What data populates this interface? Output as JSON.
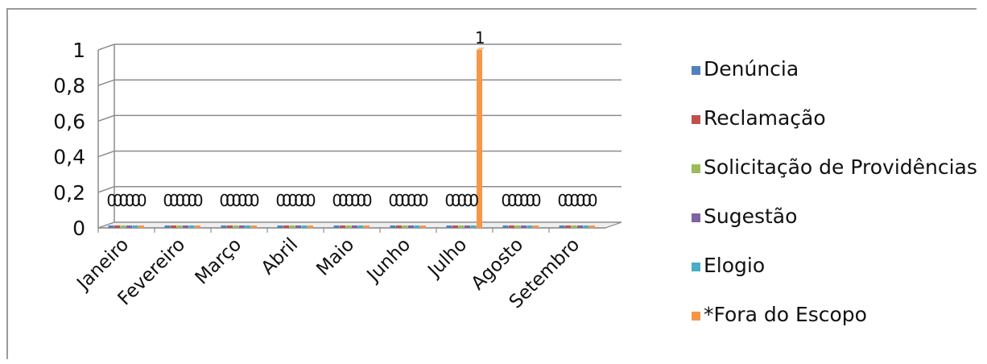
{
  "chart_data": {
    "type": "bar",
    "categories": [
      "Janeiro",
      "Fevereiro",
      "Março",
      "Abril",
      "Maio",
      "Junho",
      "Julho",
      "Agosto",
      "Setembro"
    ],
    "series": [
      {
        "name": "Denúncia",
        "color": "#4f81bd",
        "values": [
          0,
          0,
          0,
          0,
          0,
          0,
          0,
          0,
          0
        ]
      },
      {
        "name": "Reclamação",
        "color": "#c0504d",
        "values": [
          0,
          0,
          0,
          0,
          0,
          0,
          0,
          0,
          0
        ]
      },
      {
        "name": "Solicitação de Providências",
        "color": "#9bbb59",
        "values": [
          0,
          0,
          0,
          0,
          0,
          0,
          0,
          0,
          0
        ]
      },
      {
        "name": "Sugestão",
        "color": "#8064a2",
        "values": [
          0,
          0,
          0,
          0,
          0,
          0,
          0,
          0,
          0
        ]
      },
      {
        "name": "Elogio",
        "color": "#4bacc6",
        "values": [
          0,
          0,
          0,
          0,
          0,
          0,
          0,
          0,
          0
        ]
      },
      {
        "name": "*Fora do Escopo",
        "color": "#f79646",
        "values": [
          0,
          0,
          0,
          0,
          0,
          0,
          1,
          0,
          0
        ]
      }
    ],
    "y_ticks": [
      "0",
      "0,2",
      "0,4",
      "0,6",
      "0,8",
      "1"
    ],
    "ylim": [
      0,
      1
    ],
    "grid": true,
    "legend": "right",
    "data_labels": true
  }
}
